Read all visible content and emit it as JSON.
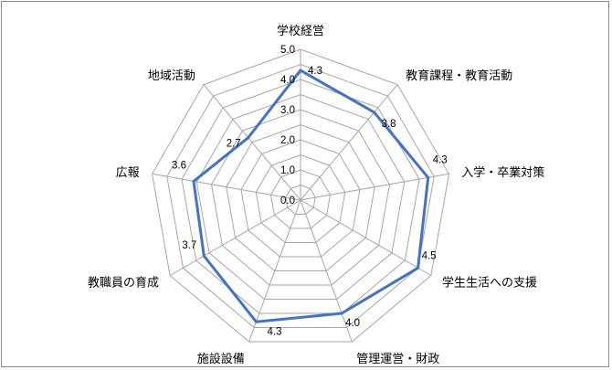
{
  "chart_data": {
    "type": "radar",
    "categories": [
      "学校経営",
      "教育課程・教育活動",
      "入学・卒業対策",
      "学生生活への支援",
      "管理運営・財政",
      "施設設備",
      "教職員の育成",
      "広報",
      "地域活動"
    ],
    "series": [
      {
        "values": [
          4.3,
          3.8,
          4.3,
          4.5,
          4.0,
          4.3,
          3.7,
          3.6,
          2.7
        ]
      }
    ],
    "data_labels": [
      "4.3",
      "3.8",
      "4.3",
      "4.5",
      "4.0",
      "4.3",
      "3.7",
      "3.6",
      "2.7"
    ],
    "tick_labels": [
      "0.0",
      "1.0",
      "2.0",
      "3.0",
      "4.0",
      "5.0"
    ],
    "rmin": 0,
    "rmax": 5,
    "rstep": 0.5,
    "title": "",
    "legend": "none",
    "grid": true,
    "colors": {
      "series": "#4472c4",
      "grid": "#a6a6a6"
    }
  }
}
